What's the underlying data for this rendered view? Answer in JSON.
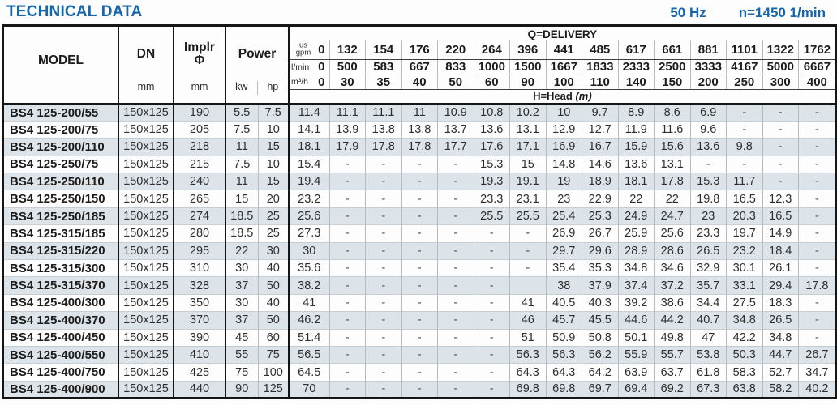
{
  "header": {
    "title": "TECHNICAL DATA",
    "frequency": "50 Hz",
    "speed": "n=1450 1/min"
  },
  "table": {
    "col_headers": {
      "model": "MODEL",
      "dn": "DN",
      "implr_line1": "Implr",
      "implr_line2": "Φ",
      "power": "Power",
      "dn_unit": "mm",
      "implr_unit": "mm",
      "kw_unit": "kw",
      "hp_unit": "hp",
      "delivery_label": "Q=DELIVERY",
      "head_label": "H=Head",
      "head_unit": "(m)",
      "gpm_unit_top": "us",
      "gpm_unit_bottom": "gpm",
      "lmin_unit": "l/min",
      "m3h_unit": "m³/h",
      "gpm_values": [
        "0",
        "132",
        "154",
        "176",
        "220",
        "264",
        "396",
        "441",
        "485",
        "617",
        "661",
        "881",
        "1101",
        "1322",
        "1762"
      ],
      "lmin_values": [
        "0",
        "500",
        "583",
        "667",
        "833",
        "1000",
        "1500",
        "1667",
        "1833",
        "2333",
        "2500",
        "3333",
        "4167",
        "5000",
        "6667"
      ],
      "m3h_values": [
        "0",
        "30",
        "35",
        "40",
        "50",
        "60",
        "90",
        "100",
        "110",
        "140",
        "150",
        "200",
        "250",
        "300",
        "400"
      ]
    },
    "rows": [
      {
        "model": "BS4 125-200/55",
        "dn": "150x125",
        "implr": "190",
        "kw": "5.5",
        "hp": "7.5",
        "head": [
          "11.4",
          "11.1",
          "11.1",
          "11",
          "10.9",
          "10.8",
          "10.2",
          "10",
          "9.7",
          "8.9",
          "8.6",
          "6.9",
          "-",
          "-",
          "-"
        ]
      },
      {
        "model": "BS4 125-200/75",
        "dn": "150x125",
        "implr": "205",
        "kw": "7.5",
        "hp": "10",
        "head": [
          "14.1",
          "13.9",
          "13.8",
          "13.8",
          "13.7",
          "13.6",
          "13.1",
          "12.9",
          "12.7",
          "11.9",
          "11.6",
          "9.6",
          "-",
          "-",
          "-"
        ]
      },
      {
        "model": "BS4 125-200/110",
        "dn": "150x125",
        "implr": "218",
        "kw": "11",
        "hp": "15",
        "head": [
          "18.1",
          "17.9",
          "17.8",
          "17.8",
          "17.7",
          "17.6",
          "17.1",
          "16.9",
          "16.7",
          "15.9",
          "15.6",
          "13.6",
          "9.8",
          "-",
          "-"
        ]
      },
      {
        "model": "BS4 125-250/75",
        "dn": "150x125",
        "implr": "215",
        "kw": "7.5",
        "hp": "10",
        "head": [
          "15.4",
          "-",
          "-",
          "-",
          "-",
          "15.3",
          "15",
          "14.8",
          "14.6",
          "13.6",
          "13.1",
          "-",
          "-",
          "-",
          "-"
        ]
      },
      {
        "model": "BS4 125-250/110",
        "dn": "150x125",
        "implr": "240",
        "kw": "11",
        "hp": "15",
        "head": [
          "19.4",
          "-",
          "-",
          "-",
          "-",
          "19.3",
          "19.1",
          "19",
          "18.9",
          "18.1",
          "17.8",
          "15.3",
          "11.7",
          "-",
          "-"
        ]
      },
      {
        "model": "BS4 125-250/150",
        "dn": "150x125",
        "implr": "265",
        "kw": "15",
        "hp": "20",
        "head": [
          "23.2",
          "-",
          "-",
          "-",
          "-",
          "23.3",
          "23.1",
          "23",
          "22.9",
          "22",
          "22",
          "19.8",
          "16.5",
          "12.3",
          "-"
        ]
      },
      {
        "model": "BS4 125-250/185",
        "dn": "150x125",
        "implr": "274",
        "kw": "18.5",
        "hp": "25",
        "head": [
          "25.6",
          "-",
          "-",
          "-",
          "-",
          "25.5",
          "25.5",
          "25.4",
          "25.3",
          "24.9",
          "24.7",
          "23",
          "20.3",
          "16.5",
          "-"
        ]
      },
      {
        "model": "BS4 125-315/185",
        "dn": "150x125",
        "implr": "280",
        "kw": "18.5",
        "hp": "25",
        "head": [
          "27.3",
          "-",
          "-",
          "-",
          "-",
          "-",
          "-",
          "26.9",
          "26.7",
          "25.9",
          "25.6",
          "23.3",
          "19.7",
          "14.9",
          "-"
        ]
      },
      {
        "model": "BS4 125-315/220",
        "dn": "150x125",
        "implr": "295",
        "kw": "22",
        "hp": "30",
        "head": [
          "30",
          "-",
          "-",
          "-",
          "-",
          "-",
          "-",
          "29.7",
          "29.6",
          "28.9",
          "28.6",
          "26.5",
          "23.2",
          "18.4",
          "-"
        ]
      },
      {
        "model": "BS4 125-315/300",
        "dn": "150x125",
        "implr": "310",
        "kw": "30",
        "hp": "40",
        "head": [
          "35.6",
          "-",
          "-",
          "-",
          "-",
          "-",
          "-",
          "35.4",
          "35.3",
          "34.8",
          "34.6",
          "32.9",
          "30.1",
          "26.1",
          "-"
        ]
      },
      {
        "model": "BS4 125-315/370",
        "dn": "150x125",
        "implr": "328",
        "kw": "37",
        "hp": "50",
        "head": [
          "38.2",
          "-",
          "-",
          "-",
          "-",
          "-",
          "",
          "38",
          "37.9",
          "37.4",
          "37.2",
          "35.7",
          "33.1",
          "29.4",
          "17.8"
        ]
      },
      {
        "model": "BS4 125-400/300",
        "dn": "150x125",
        "implr": "350",
        "kw": "30",
        "hp": "40",
        "head": [
          "41",
          "-",
          "-",
          "-",
          "-",
          "-",
          "41",
          "40.5",
          "40.3",
          "39.2",
          "38.6",
          "34.4",
          "27.5",
          "18.3",
          "-"
        ]
      },
      {
        "model": "BS4 125-400/370",
        "dn": "150x125",
        "implr": "370",
        "kw": "37",
        "hp": "50",
        "head": [
          "46.2",
          "-",
          "-",
          "-",
          "-",
          "-",
          "46",
          "45.7",
          "45.5",
          "44.6",
          "44.2",
          "40.7",
          "34.8",
          "26.5",
          "-"
        ]
      },
      {
        "model": "BS4 125-400/450",
        "dn": "150x125",
        "implr": "390",
        "kw": "45",
        "hp": "60",
        "head": [
          "51.4",
          "-",
          "-",
          "-",
          "-",
          "-",
          "51",
          "50.9",
          "50.8",
          "50.1",
          "49.8",
          "47",
          "42.2",
          "34.8",
          "-"
        ]
      },
      {
        "model": "BS4 125-400/550",
        "dn": "150x125",
        "implr": "410",
        "kw": "55",
        "hp": "75",
        "head": [
          "56.5",
          "-",
          "-",
          "-",
          "-",
          "-",
          "56.3",
          "56.3",
          "56.2",
          "55.9",
          "55.7",
          "53.8",
          "50.3",
          "44.7",
          "26.7"
        ]
      },
      {
        "model": "BS4 125-400/750",
        "dn": "150x125",
        "implr": "425",
        "kw": "75",
        "hp": "100",
        "head": [
          "64.5",
          "-",
          "-",
          "-",
          "-",
          "-",
          "64.3",
          "64.3",
          "64.2",
          "63.9",
          "63.7",
          "61.8",
          "58.3",
          "52.7",
          "34.7"
        ]
      },
      {
        "model": "BS4 125-400/900",
        "dn": "150x125",
        "implr": "440",
        "kw": "90",
        "hp": "125",
        "head": [
          "70",
          "-",
          "-",
          "-",
          "-",
          "-",
          "69.8",
          "69.8",
          "69.7",
          "69.4",
          "69.2",
          "67.3",
          "63.8",
          "58.2",
          "40.2"
        ]
      }
    ]
  },
  "colors": {
    "accent_blue": "#1565ac",
    "row_shade": "#dce4ea",
    "grid_minor": "#b3bcc2",
    "grid_major": "#151515"
  }
}
